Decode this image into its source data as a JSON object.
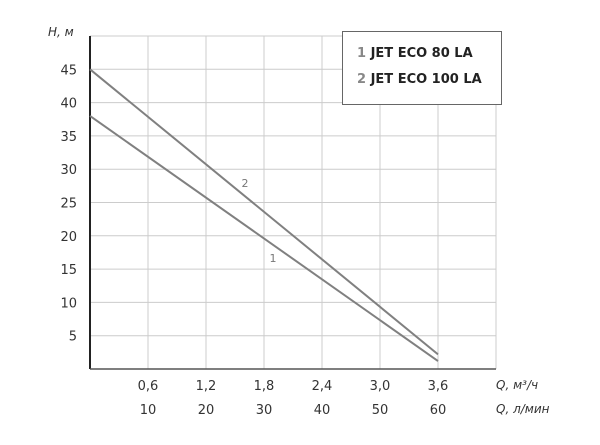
{
  "chart_data": {
    "type": "line",
    "ylabel": "H, м",
    "xlabel": "Q, м³/ч",
    "xlabel2": "Q, л/мин",
    "xlim": [
      0,
      4.2
    ],
    "ylim": [
      0,
      50
    ],
    "grid": true,
    "x_ticks": [
      "0,6",
      "1,2",
      "1,8",
      "2,4",
      "3,0",
      "3,6"
    ],
    "x_tick_values": [
      0.6,
      1.2,
      1.8,
      2.4,
      3.0,
      3.6
    ],
    "x2_ticks": [
      "10",
      "20",
      "30",
      "40",
      "50",
      "60"
    ],
    "y_ticks": [
      "5",
      "10",
      "15",
      "20",
      "25",
      "30",
      "35",
      "40",
      "45"
    ],
    "y_tick_values": [
      5,
      10,
      15,
      20,
      25,
      30,
      35,
      40,
      45
    ],
    "legend_position": "top-right",
    "series": [
      {
        "name": "JET ECO 80 LA",
        "label": "1",
        "x": [
          0,
          3.6
        ],
        "y": [
          38,
          1.2
        ],
        "color": "#808080"
      },
      {
        "name": "JET ECO 100 LA",
        "label": "2",
        "x": [
          0,
          3.6
        ],
        "y": [
          45,
          2.2
        ],
        "color": "#808080"
      }
    ]
  }
}
